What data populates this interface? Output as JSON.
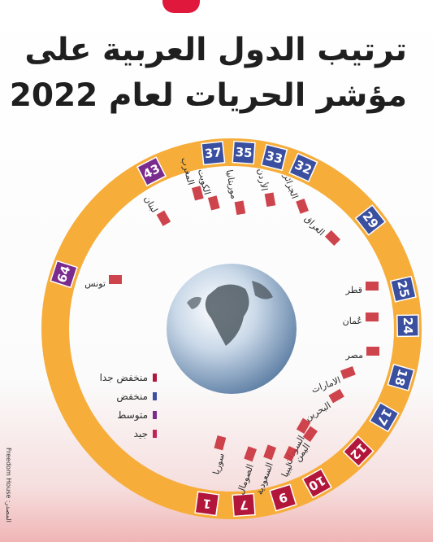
{
  "title_line1": "ترتيب الدول العربية على",
  "title_line2": "مؤشر الحريات لعام 2022",
  "source": "المصدر: Freedom House",
  "legend": [
    {
      "label": "منخفض جدا",
      "color": "#b2173b"
    },
    {
      "label": "منخفض",
      "color": "#3a4f9f"
    },
    {
      "label": "متوسط",
      "color": "#7a2c8e"
    },
    {
      "label": "جيد",
      "color": "#c0245a"
    }
  ],
  "colors": {
    "ring": "#f6ad3a",
    "low": "#3a4f9f",
    "very_low": "#b2173b",
    "medium": "#7a2c8e"
  },
  "chart_data": {
    "type": "radial_bar",
    "title": "ترتيب الدول العربية على مؤشر الحريات لعام 2022",
    "categories": [
      "تونس",
      "لبنان",
      "المغرب",
      "الكويت",
      "موريتانيا",
      "الأردن",
      "الجزائر",
      "العراق",
      "قطر",
      "عُمان",
      "مصر",
      "الامارات",
      "البحرين",
      "اليمن",
      "السودان",
      "ليبيا",
      "السعودية",
      "الصومال",
      "سوريا"
    ],
    "values": [
      64,
      43,
      37,
      37,
      35,
      33,
      32,
      29,
      25,
      24,
      18,
      17,
      12,
      9,
      10,
      7,
      7,
      7,
      1
    ],
    "labels_shown": [
      "64",
      "43",
      "37",
      "35",
      "33",
      "32",
      "29",
      "25",
      "24",
      "18",
      "17",
      "12",
      "10",
      "9",
      "7",
      "1"
    ],
    "rating": [
      "medium",
      "medium",
      "low",
      "low",
      "low",
      "low",
      "low",
      "low",
      "low",
      "low",
      "low",
      "low",
      "very_low",
      "very_low",
      "very_low",
      "very_low",
      "very_low",
      "very_low",
      "very_low"
    ]
  }
}
